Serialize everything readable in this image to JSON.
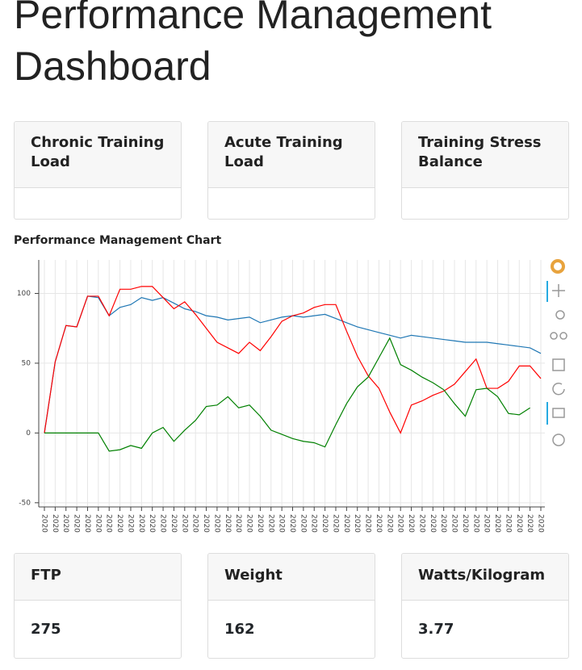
{
  "header": {
    "title": "Performance Management Dashboard"
  },
  "top_cards": [
    {
      "title": "Chronic Training Load"
    },
    {
      "title": "Acute Training Load"
    },
    {
      "title": "Training Stress Balance"
    }
  ],
  "chart": {
    "type": "line",
    "title": "Performance Management Chart",
    "categories": [
      "2020",
      "2020",
      "2020",
      "2020",
      "2020",
      "2020",
      "2020",
      "2020",
      "2020",
      "2020",
      "2020",
      "2020",
      "2020",
      "2020",
      "2020",
      "2020",
      "2020",
      "2020",
      "2020",
      "2020",
      "2020",
      "2020",
      "2020",
      "2020",
      "2020",
      "2020",
      "2020",
      "2020",
      "2020",
      "2020",
      "2020",
      "2020",
      "2020",
      "2020",
      "2020",
      "2020",
      "2020",
      "2020",
      "2020",
      "2020",
      "2020",
      "2020",
      "2020",
      "2020",
      "2020",
      "2020",
      "2020"
    ],
    "series": [
      {
        "color": "#1f77b4",
        "values": [
          0,
          51,
          77,
          76,
          98,
          97,
          84,
          90,
          92,
          97,
          95,
          97,
          93,
          89,
          87,
          84,
          83,
          81,
          82,
          83,
          79,
          81,
          83,
          84,
          83,
          84,
          85,
          82,
          79,
          76,
          74,
          72,
          70,
          68,
          70,
          69,
          68,
          67,
          66,
          65,
          65,
          65,
          64,
          63,
          62,
          61,
          57
        ]
      },
      {
        "color": "#ff0000",
        "values": [
          0,
          51,
          77,
          76,
          98,
          98,
          84,
          103,
          103,
          105,
          105,
          97,
          89,
          94,
          85,
          75,
          65,
          61,
          57,
          65,
          59,
          69,
          80,
          84,
          86,
          90,
          92,
          92,
          73,
          55,
          41,
          32,
          15,
          0,
          20,
          23,
          27,
          30,
          35,
          44,
          53,
          32,
          32,
          37,
          48,
          48,
          39
        ]
      },
      {
        "color": "#008000",
        "values": [
          0,
          0,
          0,
          0,
          0,
          0,
          -13,
          -12,
          -9,
          -11,
          0,
          4,
          -6,
          2,
          9,
          19,
          20,
          26,
          18,
          20,
          12,
          2,
          -1,
          -4,
          -6,
          -7,
          -10,
          6,
          21,
          33,
          40,
          54,
          68,
          49,
          45,
          40,
          36,
          31,
          21,
          12,
          31,
          32,
          26,
          14,
          13,
          18,
          null
        ]
      }
    ],
    "ylim": [
      -53,
      124
    ],
    "yticks": [
      -50,
      0,
      50,
      100
    ],
    "grid": true
  },
  "bottom_cards": [
    {
      "title": "FTP",
      "value": "275"
    },
    {
      "title": "Weight",
      "value": "162"
    },
    {
      "title": "Watts/Kilogram",
      "value": "3.77"
    }
  ]
}
